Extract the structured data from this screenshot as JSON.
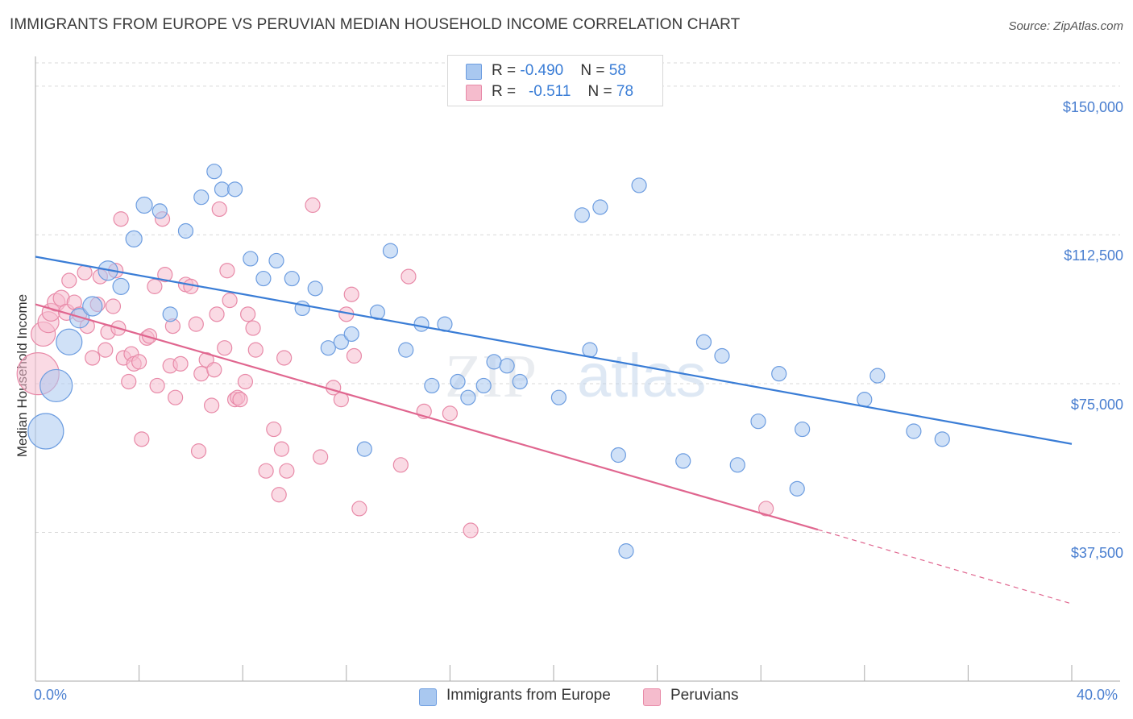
{
  "title": "IMMIGRANTS FROM EUROPE VS PERUVIAN MEDIAN HOUSEHOLD INCOME CORRELATION CHART",
  "source": "Source: ZipAtlas.com",
  "watermark": {
    "zip": "ZIP",
    "atlas": "atlas"
  },
  "colors": {
    "blue_fill": "#a9c8f0",
    "blue_stroke": "#6d9de0",
    "blue_line": "#3a7dd6",
    "pink_fill": "#f5bccd",
    "pink_stroke": "#e88aa8",
    "pink_line": "#e0668f",
    "grid": "#d9d9d9",
    "axis_text": "#4a7fd0"
  },
  "stats": [
    {
      "r_label": "R = ",
      "r_value": "-0.490",
      "n_label": "N = ",
      "n_value": "58"
    },
    {
      "r_label": "R = ",
      "r_value": "-0.511",
      "n_label": "N = ",
      "n_value": "78"
    }
  ],
  "chart_data": {
    "type": "scatter",
    "title": "IMMIGRANTS FROM EUROPE VS PERUVIAN MEDIAN HOUSEHOLD INCOME CORRELATION CHART",
    "xlabel": "",
    "ylabel": "Median Household Income",
    "xlim": [
      0,
      40
    ],
    "ylim": [
      0,
      157500
    ],
    "x_tick_labels": [
      "0.0%",
      "40.0%"
    ],
    "y_ticks": [
      37500,
      75000,
      112500,
      150000
    ],
    "y_tick_labels": [
      "$37,500",
      "$75,000",
      "$112,500",
      "$150,000"
    ],
    "grid": true,
    "legend_position": "bottom-center",
    "series": [
      {
        "name": "Immigrants from Europe",
        "r": -0.49,
        "n": 58,
        "trend": {
          "x": [
            0,
            40
          ],
          "y": [
            107000,
            59800
          ]
        },
        "points": [
          [
            0.4,
            63000,
            22
          ],
          [
            0.8,
            74500,
            20
          ],
          [
            1.3,
            85500,
            16
          ],
          [
            1.7,
            91500,
            12
          ],
          [
            2.2,
            94500,
            12
          ],
          [
            2.8,
            103500,
            12
          ],
          [
            3.3,
            99500,
            10
          ],
          [
            3.8,
            111500,
            10
          ],
          [
            4.2,
            120000,
            10
          ],
          [
            4.8,
            118500,
            9
          ],
          [
            5.2,
            92500,
            9
          ],
          [
            5.8,
            113500,
            9
          ],
          [
            6.4,
            122000,
            9
          ],
          [
            6.9,
            128500,
            9
          ],
          [
            7.2,
            124000,
            9
          ],
          [
            7.7,
            124000,
            9
          ],
          [
            8.3,
            106500,
            9
          ],
          [
            8.8,
            101500,
            9
          ],
          [
            9.3,
            106000,
            9
          ],
          [
            9.9,
            101500,
            9
          ],
          [
            10.3,
            94000,
            9
          ],
          [
            10.8,
            99000,
            9
          ],
          [
            11.3,
            84000,
            9
          ],
          [
            11.8,
            85500,
            9
          ],
          [
            12.2,
            87500,
            9
          ],
          [
            12.7,
            58500,
            9
          ],
          [
            13.2,
            93000,
            9
          ],
          [
            13.7,
            108500,
            9
          ],
          [
            14.3,
            83500,
            9
          ],
          [
            14.9,
            90000,
            9
          ],
          [
            15.3,
            74500,
            9
          ],
          [
            15.8,
            90000,
            9
          ],
          [
            16.3,
            75500,
            9
          ],
          [
            16.7,
            71500,
            9
          ],
          [
            17.3,
            74500,
            9
          ],
          [
            17.7,
            80500,
            9
          ],
          [
            18.2,
            79500,
            9
          ],
          [
            18.7,
            75500,
            9
          ],
          [
            20.2,
            71500,
            9
          ],
          [
            21.4,
            83500,
            9
          ],
          [
            21.1,
            117500,
            9
          ],
          [
            21.8,
            119500,
            9
          ],
          [
            22.5,
            57000,
            9
          ],
          [
            22.8,
            32800,
            9
          ],
          [
            23.3,
            125000,
            9
          ],
          [
            25.0,
            55500,
            9
          ],
          [
            25.8,
            85500,
            9
          ],
          [
            26.5,
            82000,
            9
          ],
          [
            27.1,
            54500,
            9
          ],
          [
            27.9,
            65500,
            9
          ],
          [
            28.7,
            77500,
            9
          ],
          [
            29.4,
            48500,
            9
          ],
          [
            29.6,
            63500,
            9
          ],
          [
            32.0,
            71000,
            9
          ],
          [
            33.9,
            63000,
            9
          ],
          [
            32.5,
            77000,
            9
          ],
          [
            35.0,
            61000,
            9
          ]
        ]
      },
      {
        "name": "Peruvians",
        "r": -0.511,
        "n": 78,
        "trend": {
          "x": [
            0,
            30.2
          ],
          "y": [
            95000,
            38200
          ]
        },
        "trend_dashed": {
          "x": [
            30.2,
            40
          ],
          "y": [
            38200,
            19500
          ]
        },
        "points": [
          [
            0.1,
            77500,
            26
          ],
          [
            0.3,
            87500,
            15
          ],
          [
            0.5,
            90500,
            13
          ],
          [
            0.6,
            93000,
            11
          ],
          [
            0.8,
            95500,
            11
          ],
          [
            1.0,
            96500,
            10
          ],
          [
            1.2,
            93000,
            10
          ],
          [
            1.3,
            101000,
            9
          ],
          [
            1.5,
            95500,
            9
          ],
          [
            1.7,
            92500,
            9
          ],
          [
            1.9,
            103000,
            9
          ],
          [
            2.0,
            89500,
            9
          ],
          [
            2.2,
            81500,
            9
          ],
          [
            2.4,
            95000,
            9
          ],
          [
            2.5,
            102000,
            9
          ],
          [
            2.7,
            83500,
            9
          ],
          [
            2.8,
            88000,
            9
          ],
          [
            3.0,
            94500,
            9
          ],
          [
            3.1,
            103500,
            9
          ],
          [
            3.2,
            89000,
            9
          ],
          [
            3.3,
            116500,
            9
          ],
          [
            3.4,
            81500,
            9
          ],
          [
            3.6,
            75500,
            9
          ],
          [
            3.7,
            82500,
            9
          ],
          [
            3.8,
            80000,
            9
          ],
          [
            4.0,
            80500,
            9
          ],
          [
            4.1,
            61000,
            9
          ],
          [
            4.3,
            86500,
            9
          ],
          [
            4.4,
            87000,
            9
          ],
          [
            4.6,
            99500,
            9
          ],
          [
            4.7,
            74500,
            9
          ],
          [
            4.9,
            116500,
            9
          ],
          [
            5.0,
            102500,
            9
          ],
          [
            5.2,
            79500,
            9
          ],
          [
            5.3,
            89500,
            9
          ],
          [
            5.4,
            71500,
            9
          ],
          [
            5.6,
            80000,
            9
          ],
          [
            5.8,
            100000,
            9
          ],
          [
            6.0,
            99500,
            9
          ],
          [
            6.2,
            90000,
            9
          ],
          [
            6.3,
            58000,
            9
          ],
          [
            6.4,
            77500,
            9
          ],
          [
            6.6,
            81000,
            9
          ],
          [
            6.8,
            69500,
            9
          ],
          [
            6.9,
            78500,
            9
          ],
          [
            7.0,
            92500,
            9
          ],
          [
            7.1,
            119000,
            9
          ],
          [
            7.3,
            84000,
            9
          ],
          [
            7.4,
            103500,
            9
          ],
          [
            7.5,
            96000,
            9
          ],
          [
            7.7,
            71000,
            9
          ],
          [
            7.8,
            71500,
            9
          ],
          [
            7.9,
            71000,
            9
          ],
          [
            8.1,
            75500,
            9
          ],
          [
            8.2,
            92500,
            9
          ],
          [
            8.4,
            89000,
            9
          ],
          [
            8.5,
            83500,
            9
          ],
          [
            8.9,
            53000,
            9
          ],
          [
            9.2,
            63500,
            9
          ],
          [
            9.4,
            47000,
            9
          ],
          [
            9.5,
            58500,
            9
          ],
          [
            9.6,
            81500,
            9
          ],
          [
            9.7,
            53000,
            9
          ],
          [
            10.7,
            120000,
            9
          ],
          [
            11.0,
            56500,
            9
          ],
          [
            11.5,
            74000,
            9
          ],
          [
            11.8,
            71000,
            9
          ],
          [
            12.0,
            92500,
            9
          ],
          [
            12.2,
            97500,
            9
          ],
          [
            12.3,
            82000,
            9
          ],
          [
            12.5,
            43500,
            9
          ],
          [
            14.1,
            54500,
            9
          ],
          [
            14.4,
            102000,
            9
          ],
          [
            15.0,
            68000,
            9
          ],
          [
            16.0,
            67500,
            9
          ],
          [
            16.8,
            38000,
            9
          ],
          [
            28.2,
            43500,
            9
          ]
        ]
      }
    ]
  }
}
